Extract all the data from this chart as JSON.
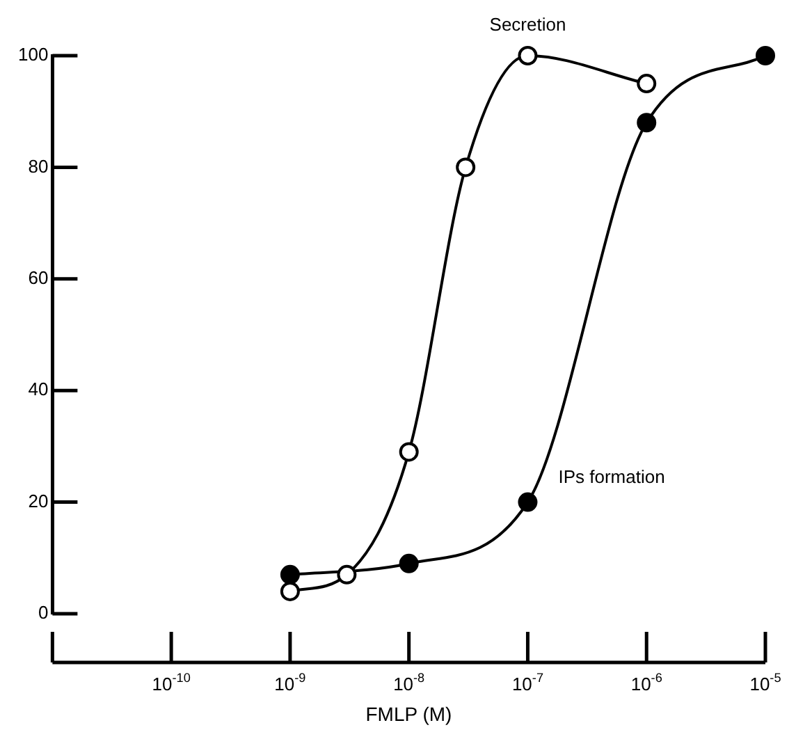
{
  "chart_data": {
    "type": "line",
    "xlabel": "FMLP (M)",
    "log": "x",
    "grid": false,
    "legend": false,
    "marker": "circle",
    "line_style": "solid",
    "xlim": [
      1e-11,
      1e-05
    ],
    "xticks": [
      {
        "value": 1e-11,
        "label": null
      },
      {
        "value": 1e-10,
        "label": "10$^{-10}$"
      },
      {
        "value": 1e-09,
        "label": "10$^{-9}$"
      },
      {
        "value": 1e-08,
        "label": "10$^{-8}$"
      },
      {
        "value": 1e-07,
        "label": "10$^{-7}$"
      },
      {
        "value": 1e-06,
        "label": "10$^{-6}$"
      },
      {
        "value": 1e-05,
        "label": "10$^{-5}$"
      }
    ],
    "ylim": [
      0,
      100
    ],
    "yticks": [
      0,
      20,
      40,
      60,
      80,
      100
    ],
    "series": [
      {
        "name": "Secretion",
        "color": "#000000",
        "x": [
          1e-09,
          3e-09,
          1e-08,
          3e-08,
          1e-07,
          1e-06
        ],
        "values": [
          4,
          7,
          29,
          80,
          100,
          95
        ]
      },
      {
        "name": "IPs formation",
        "color": "#000000",
        "x": [
          1e-09,
          1e-08,
          1e-07,
          1e-06,
          1e-05
        ],
        "values": [
          7,
          9,
          20,
          88,
          100
        ]
      }
    ]
  }
}
